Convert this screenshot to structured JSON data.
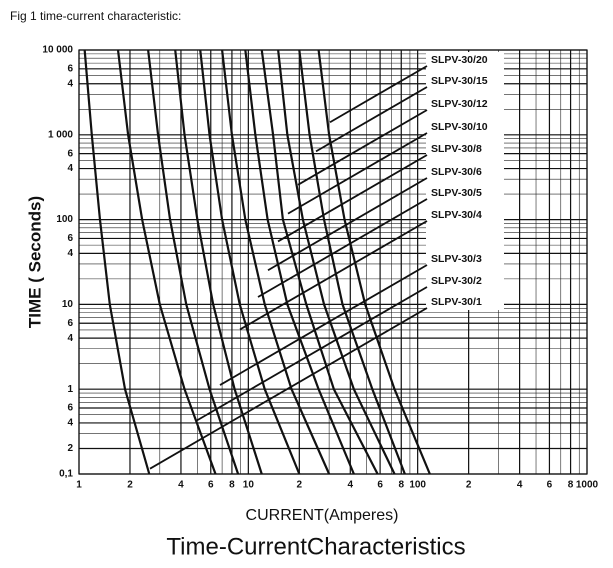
{
  "chart_data": {
    "type": "line",
    "caption": "Fig 1 time-current characteristic:",
    "title": "Time-CurrentCharacteristics",
    "x_label": "CURRENT(Amperes)",
    "y_label": "TIME ( Seconds)",
    "xscale": "log",
    "yscale": "log",
    "grid": true,
    "xlim": [
      1,
      1000
    ],
    "ylim": [
      0.1,
      10000
    ],
    "xticks": [
      1,
      2,
      4,
      6,
      8,
      10,
      {
        "value": 20,
        "label": "2"
      },
      {
        "value": 40,
        "label": "4"
      },
      {
        "value": 60,
        "label": "6"
      },
      {
        "value": 80,
        "label": "8"
      },
      100,
      {
        "value": 200,
        "label": "2"
      },
      {
        "value": 400,
        "label": "4"
      },
      {
        "value": 600,
        "label": "6"
      },
      {
        "value": 800,
        "label": "8"
      },
      1000
    ],
    "yticks": [
      {
        "value": 10000,
        "label": "10 000"
      },
      {
        "value": 6000,
        "label": "6"
      },
      {
        "value": 4000,
        "label": "4"
      },
      {
        "value": 1000,
        "label": "1 000"
      },
      {
        "value": 600,
        "label": "6"
      },
      {
        "value": 400,
        "label": "4"
      },
      100,
      {
        "value": 60,
        "label": "6"
      },
      {
        "value": 40,
        "label": "4"
      },
      10,
      6,
      4,
      1,
      {
        "value": 0.6,
        "label": "6"
      },
      {
        "value": 0.4,
        "label": "4"
      },
      {
        "value": 0.2,
        "label": "2"
      },
      {
        "value": 0.1,
        "label": "0,1"
      }
    ],
    "series": [
      {
        "name": "SLPV-30/1",
        "color": "#111111",
        "x": [
          1.08,
          1.19,
          1.33,
          1.52,
          1.87,
          2.6
        ],
        "values": [
          10000,
          1000,
          100,
          10,
          1,
          0.1
        ]
      },
      {
        "name": "SLPV-30/2",
        "color": "#111111",
        "x": [
          1.7,
          1.95,
          2.36,
          3.0,
          4.2,
          6.4
        ],
        "values": [
          10000,
          1000,
          100,
          10,
          1,
          0.1
        ]
      },
      {
        "name": "SLPV-30/3",
        "color": "#111111",
        "x": [
          2.56,
          2.93,
          3.45,
          4.3,
          5.9,
          8.7
        ],
        "values": [
          10000,
          1000,
          100,
          10,
          1,
          0.1
        ]
      },
      {
        "name": "SLPV-30/4",
        "color": "#111111",
        "x": [
          3.7,
          4.2,
          5.0,
          6.2,
          8.3,
          12
        ],
        "values": [
          10000,
          1000,
          100,
          10,
          1,
          0.1
        ]
      },
      {
        "name": "SLPV-30/5",
        "color": "#111111",
        "x": [
          5.2,
          5.9,
          7.0,
          8.9,
          12.5,
          20
        ],
        "values": [
          10000,
          1000,
          100,
          10,
          1,
          0.1
        ]
      },
      {
        "name": "SLPV-30/6",
        "color": "#111111",
        "x": [
          7.0,
          8.0,
          9.6,
          12.5,
          18,
          30
        ],
        "values": [
          10000,
          1000,
          100,
          10,
          1,
          0.1
        ]
      },
      {
        "name": "SLPV-30/8",
        "color": "#111111",
        "x": [
          9.6,
          11,
          13,
          17,
          26,
          42
        ],
        "values": [
          10000,
          1000,
          100,
          10,
          1,
          0.1
        ]
      },
      {
        "name": "SLPV-30/10",
        "color": "#111111",
        "x": [
          12,
          14,
          16,
          22,
          32,
          58
        ],
        "values": [
          10000,
          1000,
          100,
          10,
          1,
          0.1
        ]
      },
      {
        "name": "SLPV-30/12",
        "color": "#111111",
        "x": [
          15,
          17,
          21,
          28,
          42,
          73
        ],
        "values": [
          10000,
          1000,
          100,
          10,
          1,
          0.1
        ]
      },
      {
        "name": "SLPV-30/15",
        "color": "#111111",
        "x": [
          20,
          23,
          28,
          36,
          54,
          84
        ],
        "values": [
          10000,
          1000,
          100,
          10,
          1,
          0.1
        ]
      },
      {
        "name": "SLPV-30/20",
        "color": "#111111",
        "x": [
          26,
          30,
          37,
          49,
          73,
          118
        ],
        "values": [
          10000,
          1000,
          100,
          10,
          1,
          0.1
        ]
      }
    ]
  }
}
